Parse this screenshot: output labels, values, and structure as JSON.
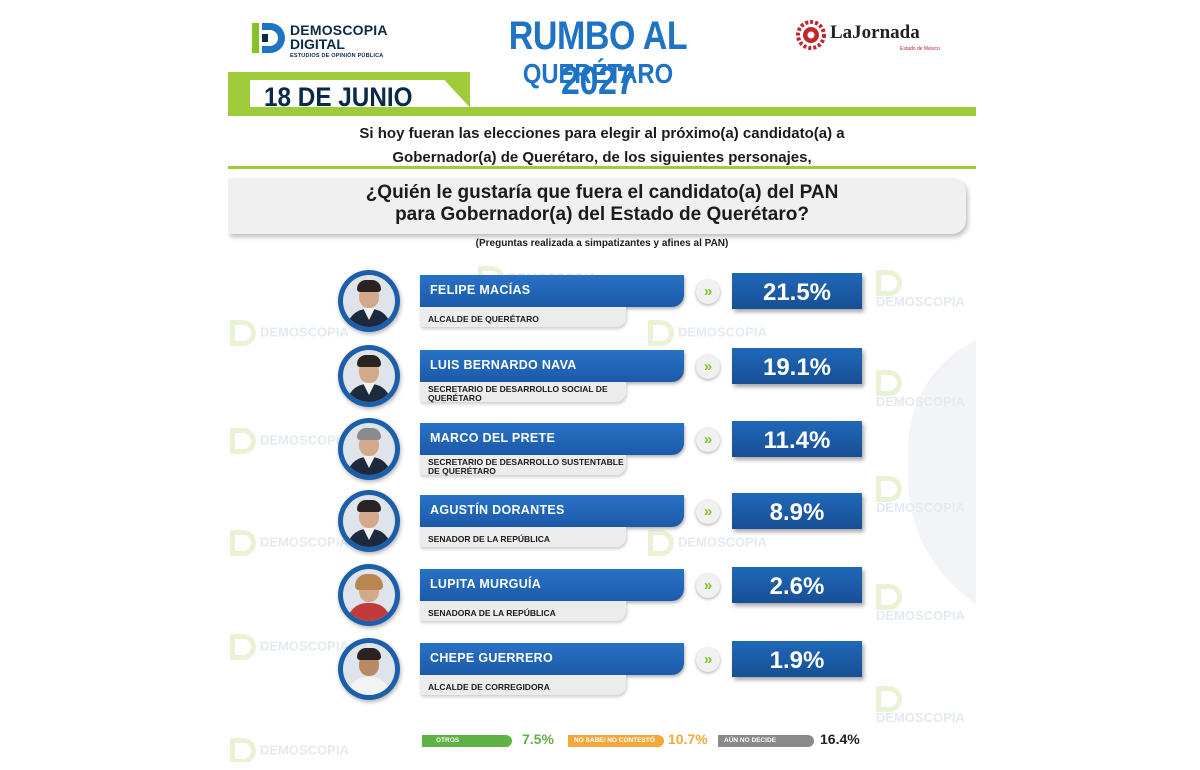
{
  "header": {
    "brand_name_line1": "DEMOSCOPIA",
    "brand_name_line2": "DIGITAL",
    "brand_tagline": "ESTUDIOS DE OPINIÓN PÚBLICA",
    "title": "RUMBO AL 2027",
    "subtitle": "QUERÉTARO",
    "partner_name": "LaJornada",
    "partner_tagline": "Estado de México",
    "date": "18 DE JUNIO"
  },
  "intro_line1": "Si hoy fueran las elecciones para elegir al próximo(a) candidato(a) a",
  "intro_line2": "Gobernador(a) de Querétaro, de los siguientes personajes,",
  "question_line1": "¿Quién le gustaría que fuera el candidato(a) del PAN",
  "question_line2": "para Gobernador(a) del Estado de Querétaro?",
  "note": "(Preguntas realizada a simpatizantes y afines al PAN)",
  "candidates": [
    {
      "name": "FELIPE MACÍAS",
      "role": "ALCALDE DE QUERÉTARO",
      "percent": "21.5%"
    },
    {
      "name": "LUIS BERNARDO NAVA",
      "role": "SECRETARIO DE DESARROLLO SOCIAL DE QUERÉTARO",
      "percent": "19.1%"
    },
    {
      "name": "MARCO DEL PRETE",
      "role": "SECRETARIO DE DESARROLLO SUSTENTABLE DE QUERÉTARO",
      "percent": "11.4%"
    },
    {
      "name": "AGUSTÍN DORANTES",
      "role": "SENADOR DE LA REPÚBLICA",
      "percent": "8.9%"
    },
    {
      "name": "LUPITA MURGUÍA",
      "role": "SENADORA DE LA REPÚBLICA",
      "percent": "2.6%"
    },
    {
      "name": "CHEPE GUERRERO",
      "role": "ALCALDE DE CORREGIDORA",
      "percent": "1.9%"
    }
  ],
  "legend": [
    {
      "label": "OTROS",
      "value": "7.5%",
      "color": "#5fb246"
    },
    {
      "label": "NO SABE/ NO CONTESTÓ",
      "value": "10.7%",
      "color": "#f2a93b"
    },
    {
      "label": "AÚN NO DECIDE",
      "value": "16.4%",
      "color": "#8a8a8a"
    }
  ],
  "colors": {
    "accent_green": "#9ecb3a",
    "primary_blue": "#1f68b9",
    "title_blue": "#1f73c4",
    "dark_navy": "#0b2a4a"
  },
  "icons": {
    "brand_logo": "demoscopia-d-logo",
    "partner_logo": "la-jornada-gear-logo",
    "arrow": "double-chevron-right-icon"
  }
}
